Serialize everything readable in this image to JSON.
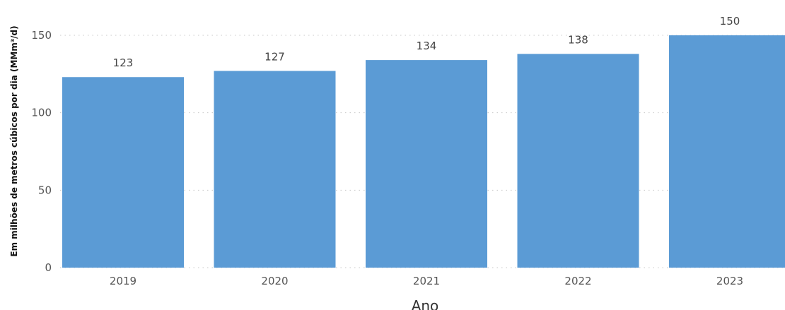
{
  "chart_data": {
    "type": "bar",
    "categories": [
      "2019",
      "2020",
      "2021",
      "2022",
      "2023"
    ],
    "values": [
      123,
      127,
      134,
      138,
      150
    ],
    "data_labels": [
      "123",
      "127",
      "134",
      "138",
      "150"
    ],
    "xlabel": "Ano",
    "ylabel": "Em milhões de metros cúbicos por dia (MMm³/d)",
    "ylim": [
      0,
      150
    ],
    "yticks": [
      0,
      50,
      100,
      150
    ],
    "ytick_labels": [
      "0",
      "50",
      "100",
      "150"
    ],
    "grid": true,
    "colors": {
      "bar": "#5b9bd5"
    }
  }
}
